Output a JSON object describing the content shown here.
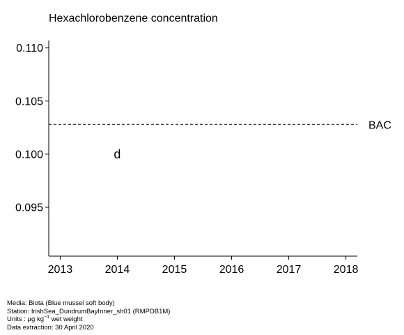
{
  "chart_data": {
    "type": "scatter",
    "title": "Hexachlorobenzene concentration",
    "xlabel": "",
    "ylabel": "",
    "xlim": [
      2012.8,
      2018.2
    ],
    "ylim": [
      0.0904,
      0.1107
    ],
    "x_ticks": [
      2013,
      2014,
      2015,
      2016,
      2017,
      2018
    ],
    "y_ticks": [
      "0.095",
      "0.100",
      "0.105",
      "0.110"
    ],
    "points": [
      {
        "x": 2014,
        "y": 0.1,
        "marker": "d"
      }
    ],
    "reference_lines": [
      {
        "label": "BAC",
        "y": 0.1028,
        "style": "dashed"
      }
    ],
    "grid": false,
    "legend": "none"
  },
  "footer": {
    "media": "Media: Biota (Blue mussel soft body)",
    "station": "Station: IrishSea_DundrumBayInner_sh01 (RMPDB1M)",
    "units_prefix": "Units : µg kg",
    "units_exp": "−1",
    "units_suffix": " wet weight",
    "extraction": "Data extraction: 30 April 2020"
  }
}
